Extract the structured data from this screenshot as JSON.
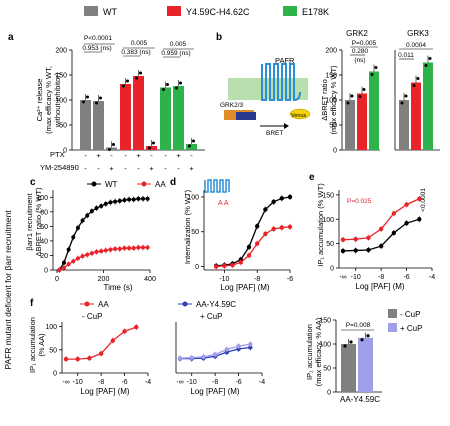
{
  "legend_top": [
    {
      "label": "WT",
      "color": "#808080"
    },
    {
      "label": "Y4.59C-H4.62C",
      "color": "#e8232a"
    },
    {
      "label": "E178K",
      "color": "#2db34a"
    }
  ],
  "side_label": "PAFR mutant deficient for βarr recruitment",
  "colors": {
    "wt": "#808080",
    "red": "#e8232a",
    "green": "#2db34a",
    "black": "#000000",
    "blue": "#2a3fbd",
    "purple": "#9f9fe8"
  },
  "panels": {
    "a": {
      "letter": "a",
      "ylabel_1": "Ca²⁺ release",
      "ylabel_2": "(max efficacy % WT,",
      "ylabel_3": "without inhibitor)",
      "pvals": [
        "P<0.0001",
        "0.953 (ns)",
        "0.005",
        "0.383 (ns)",
        "0.005",
        "0.959 (ns)"
      ],
      "row1_label": "PTX",
      "row2_label": "YM-254890",
      "row1_marks": [
        "-",
        "+",
        "-",
        "-",
        "+",
        "-",
        "-",
        "+",
        "-"
      ],
      "row2_marks": [
        "-",
        "-",
        "+",
        "-",
        "-",
        "+",
        "-",
        "-",
        "+"
      ]
    },
    "b": {
      "letter": "b",
      "receptor": "PAFR",
      "kinase": "GRK2/3",
      "venus": "Venus",
      "bret": "BRET",
      "ylabel_1": "ΔBRET ratio",
      "ylabel_2": "(max efficacy % WT)",
      "title_grk2": "GRK2",
      "title_grk3": "GRK3",
      "pvals_grk2": [
        "P=0.005",
        "0.280",
        "(ns)"
      ],
      "pvals_grk3": [
        "0.0004",
        "0.011"
      ]
    },
    "c": {
      "letter": "c",
      "ylabel_1": "βarr1 recruitment",
      "ylabel_2": "ΔBRET ratio (% WT)",
      "xlabel": "Time (s)",
      "legend_wt": "WT",
      "legend_aa": "AA"
    },
    "d": {
      "letter": "d",
      "ylabel": "Internalization (% WT)",
      "xlabel": "Log [PAF] (M)",
      "mut_label": "A A"
    },
    "e": {
      "letter": "e",
      "ylabel": "IP₁ accumulation (% WT)",
      "xlabel": "Log [PAF] (M)",
      "p1": "P=0.025",
      "p2": "<0.0001"
    },
    "f": {
      "letter": "f",
      "ylabel_1": "IP₁ accumulation",
      "ylabel_2": "(% AA)",
      "xlabel": "Log [PAF] (M)",
      "legend_left": "AA",
      "cond_left": "- CuP",
      "legend_right_1": "AA-Y4.59C",
      "legend_right_2": "+ CuP"
    },
    "g": {
      "ylabel_1": "IP₁ accumulation",
      "ylabel_2": "(max efficacy, % AA)",
      "pval": "P=0.008",
      "legend_1": "- CuP",
      "legend_2": "+ CuP",
      "xlabel": "AA-Y4.59C"
    }
  },
  "chart_data": [
    {
      "panel": "a",
      "type": "bar",
      "ylabel": "Ca2+ release (max efficacy % WT, without inhibitor)",
      "ylim": [
        0,
        200
      ],
      "yticks": [
        0,
        50,
        100,
        150,
        200
      ],
      "series": [
        {
          "name": "WT",
          "values": [
            100,
            98,
            5
          ]
        },
        {
          "name": "Y4.59C-H4.62C",
          "values": [
            132,
            148,
            8
          ]
        },
        {
          "name": "E178K",
          "values": [
            125,
            128,
            12
          ]
        }
      ]
    },
    {
      "panel": "b-GRK2",
      "type": "bar",
      "title": "GRK2",
      "ylim": [
        0,
        200
      ],
      "yticks": [
        0,
        50,
        100,
        150,
        200
      ],
      "series": [
        {
          "name": "WT",
          "values": [
            100
          ]
        },
        {
          "name": "Y4.59C-H4.62C",
          "values": [
            113
          ]
        },
        {
          "name": "E178K",
          "values": [
            157
          ]
        }
      ]
    },
    {
      "panel": "b-GRK3",
      "type": "bar",
      "title": "GRK3",
      "ylim": [
        0,
        200
      ],
      "series": [
        {
          "name": "WT",
          "values": [
            100
          ]
        },
        {
          "name": "Y4.59C-H4.62C",
          "values": [
            135
          ]
        },
        {
          "name": "E178K",
          "values": [
            175
          ]
        }
      ]
    },
    {
      "panel": "c",
      "type": "line",
      "xlabel": "Time (s)",
      "ylabel": "βarr1 recruitment ΔBRET ratio (% WT)",
      "xlim": [
        0,
        400
      ],
      "ylim": [
        0,
        110
      ],
      "xticks": [
        0,
        200,
        400
      ],
      "yticks": [
        0,
        20,
        40,
        60,
        80,
        100
      ],
      "series": [
        {
          "name": "WT",
          "x": [
            10,
            30,
            50,
            70,
            90,
            110,
            130,
            150,
            170,
            190,
            210,
            230,
            250,
            270,
            290,
            310,
            330,
            350,
            370,
            390
          ],
          "y": [
            0,
            10,
            28,
            45,
            58,
            68,
            75,
            81,
            85,
            88,
            91,
            93,
            94,
            95,
            96,
            97,
            97,
            98,
            98,
            98
          ]
        },
        {
          "name": "AA",
          "x": [
            10,
            30,
            50,
            70,
            90,
            110,
            130,
            150,
            170,
            190,
            210,
            230,
            250,
            270,
            290,
            310,
            330,
            350,
            370,
            390
          ],
          "y": [
            0,
            3,
            8,
            12,
            16,
            19,
            21,
            23,
            25,
            26,
            27,
            28,
            29,
            29,
            30,
            30,
            30,
            31,
            31,
            31
          ]
        }
      ]
    },
    {
      "panel": "d",
      "type": "line",
      "xlabel": "Log [PAF] (M)",
      "ylabel": "Internalization (% WT)",
      "xlim": [
        -11,
        -6
      ],
      "ylim": [
        -5,
        110
      ],
      "xticks": [
        -10,
        -8,
        -6
      ],
      "yticks": [
        0,
        50,
        100
      ],
      "series": [
        {
          "name": "WT",
          "x": [
            -10.5,
            -10,
            -9.5,
            -9,
            -8.5,
            -8,
            -7.5,
            -7,
            -6.5,
            -6
          ],
          "y": [
            1,
            2,
            4,
            10,
            28,
            58,
            82,
            93,
            98,
            100
          ]
        },
        {
          "name": "AA",
          "x": [
            -10.5,
            -10,
            -9.5,
            -9,
            -8.5,
            -8,
            -7.5,
            -7,
            -6.5,
            -6
          ],
          "y": [
            0,
            1,
            2,
            6,
            16,
            33,
            47,
            54,
            56,
            57
          ]
        }
      ]
    },
    {
      "panel": "e",
      "type": "line",
      "xlabel": "Log [PAF] (M)",
      "ylabel": "IP1 accumulation (% WT)",
      "xlim": [
        -11,
        -4
      ],
      "ylim": [
        0,
        160
      ],
      "xticks": [
        -10,
        -8,
        -6,
        -4
      ],
      "yticks": [
        0,
        50,
        100,
        150
      ],
      "series": [
        {
          "name": "WT",
          "x": [
            -11,
            -10,
            -9,
            -8,
            -7,
            -6,
            -5
          ],
          "y": [
            35,
            36,
            37,
            45,
            72,
            92,
            100
          ]
        },
        {
          "name": "AA",
          "x": [
            -11,
            -10,
            -9,
            -8,
            -7,
            -6,
            -5
          ],
          "y": [
            58,
            59,
            62,
            80,
            112,
            130,
            142
          ]
        }
      ]
    },
    {
      "panel": "f-left",
      "type": "line",
      "xlabel": "Log [PAF] (M)",
      "ylabel": "IP1 accumulation (% AA)",
      "xlim": [
        -11,
        -4
      ],
      "ylim": [
        0,
        110
      ],
      "xticks": [
        -10,
        -8,
        -6,
        -4
      ],
      "yticks": [
        0,
        50,
        100
      ],
      "series": [
        {
          "name": "AA",
          "x": [
            -11,
            -10,
            -9,
            -8,
            -7,
            -6,
            -5
          ],
          "y": [
            30,
            30,
            32,
            42,
            70,
            90,
            99
          ]
        }
      ]
    },
    {
      "panel": "f-right",
      "type": "line",
      "xlabel": "Log [PAF] (M)",
      "xlim": [
        -11,
        -4
      ],
      "ylim": [
        0,
        110
      ],
      "xticks": [
        -10,
        -8,
        -6,
        -4
      ],
      "series": [
        {
          "name": "AA-Y4.59C - CuP",
          "x": [
            -11,
            -10,
            -9,
            -8,
            -7,
            -6,
            -5
          ],
          "y": [
            31,
            31,
            32,
            36,
            45,
            52,
            55
          ]
        },
        {
          "name": "AA-Y4.59C + CuP",
          "x": [
            -11,
            -10,
            -9,
            -8,
            -7,
            -6,
            -5
          ],
          "y": [
            32,
            33,
            35,
            40,
            51,
            58,
            62
          ]
        }
      ]
    },
    {
      "panel": "g",
      "type": "bar",
      "ylabel": "IP1 accumulation (max efficacy, % AA)",
      "xlabel": "AA-Y4.59C",
      "ylim": [
        0,
        150
      ],
      "yticks": [
        0,
        50,
        100,
        150
      ],
      "series": [
        {
          "name": "- CuP",
          "values": [
            100
          ]
        },
        {
          "name": "+ CuP",
          "values": [
            113
          ]
        }
      ]
    }
  ]
}
